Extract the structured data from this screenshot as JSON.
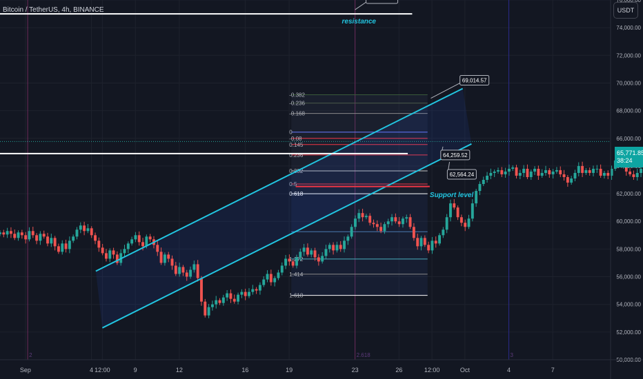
{
  "pane": {
    "symbol_title": "Bitcoin / TetherUS, 4h, BINANCE",
    "unit": "USDT",
    "last_price": "65,771.85",
    "countdown": "38:24"
  },
  "colors": {
    "background": "#131722",
    "up": "#26a69a",
    "down": "#ef5350",
    "channel": "#22c5e0",
    "annotation": "#22c5e0",
    "support_red": "#f23645",
    "grid": "#1e222d",
    "vline": "#6b2a5a"
  },
  "chart_data": {
    "type": "candlestick",
    "title": "Bitcoin / TetherUS, 4h, BINANCE",
    "ylim": [
      50000,
      76000
    ],
    "y_ticks": [
      {
        "value": 76000,
        "label": "76,000.00"
      },
      {
        "value": 74000,
        "label": "74,000.00"
      },
      {
        "value": 72000,
        "label": "72,000.00"
      },
      {
        "value": 70000,
        "label": "70,000.00"
      },
      {
        "value": 68000,
        "label": "68,000.00"
      },
      {
        "value": 66000,
        "label": "66,000.00"
      },
      {
        "value": 64000,
        "label": "64,000.00"
      },
      {
        "value": 62000,
        "label": "62,000.00"
      },
      {
        "value": 60000,
        "label": "60,000.00"
      },
      {
        "value": 58000,
        "label": "58,000.00"
      },
      {
        "value": 56000,
        "label": "56,000.00"
      },
      {
        "value": 54000,
        "label": "54,000.00"
      },
      {
        "value": 52000,
        "label": "52,000.00"
      },
      {
        "value": 50000,
        "label": "50,000.00"
      }
    ],
    "x_ticks": [
      {
        "t": 0,
        "label": "Sep"
      },
      {
        "t": 3,
        "label": "4"
      },
      {
        "t": 3.5,
        "label": "12:00"
      },
      {
        "t": 5,
        "label": "9"
      },
      {
        "t": 7,
        "label": "12"
      },
      {
        "t": 10,
        "label": "16"
      },
      {
        "t": 12,
        "label": "19"
      },
      {
        "t": 15,
        "label": "23"
      },
      {
        "t": 17,
        "label": "26"
      },
      {
        "t": 18.5,
        "label": "12:00"
      },
      {
        "t": 20,
        "label": "Oct"
      },
      {
        "t": 22,
        "label": "4"
      },
      {
        "t": 24,
        "label": "7"
      }
    ],
    "x_range": [
      -1.16,
      26.63
    ],
    "series": [
      {
        "name": "",
        "x0": -1.16,
        "dt": 0.1667,
        "close": [
          59200,
          59050,
          59300,
          59100,
          58800,
          59200,
          59000,
          58700,
          59300,
          59000,
          58600,
          59100,
          58900,
          58400,
          58800,
          58200,
          57800,
          58400,
          58000,
          58600,
          58900,
          59400,
          59700,
          59300,
          59500,
          59000,
          58600,
          58100,
          57700,
          57300,
          57900,
          57600,
          57000,
          57700,
          58000,
          58400,
          58700,
          59000,
          58500,
          58200,
          58900,
          58700,
          58300,
          57800,
          57000,
          57600,
          57300,
          56800,
          56200,
          56700,
          56300,
          56000,
          56500,
          56900,
          55900,
          54200,
          53200,
          53800,
          54000,
          54300,
          54100,
          54500,
          54800,
          54400,
          54200,
          54700,
          54900,
          54600,
          54900,
          55100,
          55000,
          55400,
          55800,
          56200,
          55600,
          55900,
          56300,
          56800,
          57300,
          57100,
          56800,
          57400,
          57800,
          58100,
          57600,
          57900,
          57400,
          57100,
          57500,
          58000,
          58300,
          57900,
          58300,
          58000,
          58600,
          58900,
          59600,
          60200,
          60600,
          60300,
          60400,
          59900,
          59800,
          59600,
          59300,
          59800,
          60000,
          60300,
          60000,
          59800,
          60200,
          60300,
          59600,
          58800,
          58200,
          58800,
          58300,
          57900,
          58600,
          58400,
          59000,
          59400,
          60300,
          61300,
          61000,
          60300,
          59900,
          59600,
          60200,
          61300,
          62200,
          62700,
          63000,
          63300,
          63500,
          63600,
          63700,
          63400,
          63600,
          63800,
          63900,
          63300,
          63500,
          63800,
          63200,
          63600,
          63800,
          63300,
          63500,
          63700,
          63400,
          63600,
          63700,
          63400,
          63200,
          62800,
          63100,
          63500,
          64000,
          63500,
          63700,
          63500,
          63800,
          63800,
          63300,
          63500,
          63300,
          63800,
          64400,
          64600,
          64200,
          63600,
          63400,
          63200,
          63500,
          63800,
          64200,
          64700,
          65100,
          65600,
          65600,
          65500,
          65900,
          65700,
          65900,
          65800,
          65770
        ]
      }
    ],
    "annotations": {
      "resistance_level": 75000,
      "support_white_level": 64900,
      "channel_upper": [
        {
          "t": 3.2,
          "v": 56400
        },
        {
          "t": 19.9,
          "v": 69600
        }
      ],
      "channel_lower": [
        {
          "t": 3.5,
          "v": 52300
        },
        {
          "t": 20.3,
          "v": 65600
        }
      ],
      "fib_levels": [
        {
          "ratio": "-0.382",
          "value": 69150
        },
        {
          "ratio": "-0.236",
          "value": 68550
        },
        {
          "ratio": "-0.168",
          "value": 67800
        },
        {
          "ratio": "0",
          "value": 66450
        },
        {
          "ratio": "-0.08",
          "value": 66000
        },
        {
          "ratio": "0.145",
          "value": 65550
        },
        {
          "ratio": "0.236",
          "value": 64800
        },
        {
          "ratio": "0.382",
          "value": 63650
        },
        {
          "ratio": "0.5",
          "value": 62700
        },
        {
          "ratio": "0.618",
          "value": 62000
        },
        {
          "ratio": "",
          "value": 59250
        },
        {
          "ratio": "1.272",
          "value": 57280
        },
        {
          "ratio": "1.414",
          "value": 56180
        },
        {
          "ratio": "1.618",
          "value": 54650
        }
      ],
      "callouts": [
        {
          "label": "69,014.57",
          "value": 69014.57
        },
        {
          "label": "64,259.52",
          "value": 64259.52
        },
        {
          "label": "62,564.24",
          "value": 62564.24
        }
      ],
      "resistance_text": "resistance",
      "support_text": "Support level",
      "vline_labels": [
        "2",
        "2.618",
        "3"
      ]
    }
  }
}
